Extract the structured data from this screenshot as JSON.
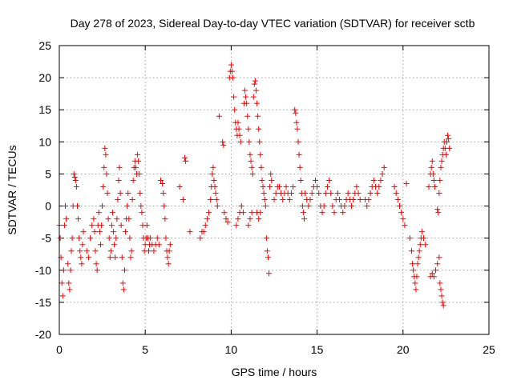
{
  "chart_data": {
    "type": "scatter",
    "title": "Day 278 of 2023, Sidereal Day-to-day VTEC variation (SDTVAR) for receiver sctb",
    "xlabel": "GPS time / hours",
    "ylabel": "SDTVAR / TECUs",
    "xlim": [
      0,
      25
    ],
    "ylim": [
      -20,
      25
    ],
    "xticks": [
      0,
      5,
      10,
      15,
      20,
      25
    ],
    "yticks": [
      -20,
      -15,
      -10,
      -5,
      0,
      5,
      10,
      15,
      20,
      25
    ],
    "xtick_labels": [
      "0",
      "5",
      "10",
      "15",
      "20",
      "25"
    ],
    "ytick_labels": [
      "-20",
      "-15",
      "-10",
      "-5",
      "0",
      "5",
      "10",
      "15",
      "20",
      "25"
    ],
    "grid": true,
    "marker": "+",
    "color": "#ff0000",
    "series": [
      {
        "name": "sctb",
        "points": [
          [
            0.0,
            -3
          ],
          [
            0.05,
            -5
          ],
          [
            0.1,
            -8
          ],
          [
            0.15,
            -12
          ],
          [
            0.2,
            -14
          ],
          [
            0.25,
            -10
          ],
          [
            0.3,
            -3
          ],
          [
            0.35,
            0
          ],
          [
            0.4,
            -2
          ],
          [
            0.5,
            -9
          ],
          [
            0.55,
            -12
          ],
          [
            0.6,
            -13
          ],
          [
            0.65,
            -10
          ],
          [
            0.7,
            -7
          ],
          [
            0.75,
            -5
          ],
          [
            0.8,
            0
          ],
          [
            0.85,
            5
          ],
          [
            0.9,
            4.5
          ],
          [
            0.95,
            4
          ],
          [
            1.0,
            3
          ],
          [
            1.05,
            0
          ],
          [
            1.1,
            -2
          ],
          [
            1.15,
            -5
          ],
          [
            1.2,
            -7
          ],
          [
            1.25,
            -8
          ],
          [
            1.3,
            -9
          ],
          [
            1.35,
            -6
          ],
          [
            1.4,
            -4
          ],
          [
            1.6,
            -7
          ],
          [
            1.7,
            -8
          ],
          [
            1.8,
            -5
          ],
          [
            1.9,
            -3
          ],
          [
            2.0,
            -2
          ],
          [
            2.05,
            -4
          ],
          [
            2.1,
            -7
          ],
          [
            2.15,
            -9
          ],
          [
            2.2,
            -10
          ],
          [
            2.25,
            -3
          ],
          [
            2.3,
            -1
          ],
          [
            2.35,
            -4
          ],
          [
            2.4,
            -6
          ],
          [
            2.45,
            -3
          ],
          [
            2.5,
            0
          ],
          [
            2.55,
            3
          ],
          [
            2.6,
            6
          ],
          [
            2.65,
            9
          ],
          [
            2.7,
            8
          ],
          [
            2.75,
            5
          ],
          [
            2.8,
            2
          ],
          [
            2.85,
            -2
          ],
          [
            2.9,
            -5
          ],
          [
            2.95,
            -8
          ],
          [
            3.0,
            -7
          ],
          [
            3.05,
            -3
          ],
          [
            3.1,
            -1
          ],
          [
            3.15,
            -4
          ],
          [
            3.2,
            -6
          ],
          [
            3.25,
            -8
          ],
          [
            3.3,
            -5
          ],
          [
            3.35,
            -2
          ],
          [
            3.4,
            1
          ],
          [
            3.45,
            4
          ],
          [
            3.5,
            6
          ],
          [
            3.55,
            2
          ],
          [
            3.6,
            -3
          ],
          [
            3.65,
            -8
          ],
          [
            3.7,
            -12
          ],
          [
            3.75,
            -13
          ],
          [
            3.8,
            -10
          ],
          [
            3.85,
            -4
          ],
          [
            3.9,
            -2
          ],
          [
            3.95,
            0
          ],
          [
            4.0,
            2
          ],
          [
            4.05,
            -2
          ],
          [
            4.1,
            -5
          ],
          [
            4.15,
            -8
          ],
          [
            4.2,
            -7
          ],
          [
            4.25,
            1
          ],
          [
            4.3,
            4
          ],
          [
            4.35,
            6
          ],
          [
            4.4,
            7
          ],
          [
            4.45,
            6
          ],
          [
            4.5,
            5
          ],
          [
            4.55,
            8
          ],
          [
            4.6,
            7
          ],
          [
            4.65,
            5
          ],
          [
            4.7,
            2
          ],
          [
            4.75,
            0
          ],
          [
            4.8,
            -1
          ],
          [
            4.85,
            -3
          ],
          [
            4.9,
            -5
          ],
          [
            4.95,
            -7
          ],
          [
            5.0,
            -6
          ],
          [
            5.05,
            -5
          ],
          [
            5.1,
            -3
          ],
          [
            5.15,
            -5
          ],
          [
            5.2,
            -7
          ],
          [
            5.25,
            -6
          ],
          [
            5.3,
            -5
          ],
          [
            5.4,
            -6
          ],
          [
            5.5,
            -7
          ],
          [
            5.6,
            -6
          ],
          [
            5.7,
            -5
          ],
          [
            5.8,
            -6
          ],
          [
            5.9,
            4
          ],
          [
            6.0,
            3.5
          ],
          [
            6.05,
            2
          ],
          [
            6.1,
            0
          ],
          [
            6.15,
            -2
          ],
          [
            6.2,
            -5
          ],
          [
            6.25,
            -7
          ],
          [
            6.3,
            -8
          ],
          [
            6.35,
            -9
          ],
          [
            6.4,
            -7
          ],
          [
            6.45,
            -6
          ],
          [
            7.0,
            3
          ],
          [
            7.2,
            1
          ],
          [
            7.3,
            7.5
          ],
          [
            7.35,
            7
          ],
          [
            7.6,
            -4
          ],
          [
            8.2,
            -5
          ],
          [
            8.3,
            -4
          ],
          [
            8.4,
            -4
          ],
          [
            8.5,
            -3
          ],
          [
            8.6,
            -2
          ],
          [
            8.7,
            -1
          ],
          [
            8.8,
            1
          ],
          [
            8.85,
            3
          ],
          [
            8.9,
            5
          ],
          [
            8.95,
            6
          ],
          [
            9.0,
            4
          ],
          [
            9.05,
            3
          ],
          [
            9.1,
            2
          ],
          [
            9.15,
            1
          ],
          [
            9.2,
            0
          ],
          [
            9.3,
            14
          ],
          [
            9.5,
            10
          ],
          [
            9.55,
            9.5
          ],
          [
            9.6,
            -1
          ],
          [
            9.7,
            -2
          ],
          [
            9.8,
            -2.5
          ],
          [
            9.9,
            20
          ],
          [
            9.95,
            21
          ],
          [
            10.0,
            22
          ],
          [
            10.05,
            21
          ],
          [
            10.1,
            20
          ],
          [
            10.15,
            17
          ],
          [
            10.2,
            15
          ],
          [
            10.25,
            13
          ],
          [
            10.3,
            12
          ],
          [
            10.35,
            11
          ],
          [
            10.4,
            13
          ],
          [
            10.45,
            12
          ],
          [
            10.5,
            11
          ],
          [
            10.55,
            10
          ],
          [
            10.3,
            -3
          ],
          [
            10.4,
            -2
          ],
          [
            10.5,
            -1
          ],
          [
            10.6,
            0
          ],
          [
            10.7,
            -1
          ],
          [
            10.75,
            16
          ],
          [
            10.8,
            18
          ],
          [
            10.85,
            17
          ],
          [
            10.9,
            16
          ],
          [
            10.95,
            14
          ],
          [
            11.0,
            12
          ],
          [
            11.05,
            10
          ],
          [
            11.1,
            8
          ],
          [
            11.15,
            7
          ],
          [
            11.2,
            6
          ],
          [
            11.25,
            5
          ],
          [
            11.0,
            -3
          ],
          [
            11.1,
            -2
          ],
          [
            11.2,
            -1
          ],
          [
            11.3,
            17
          ],
          [
            11.35,
            19
          ],
          [
            11.4,
            19.5
          ],
          [
            11.45,
            18
          ],
          [
            11.5,
            16
          ],
          [
            11.55,
            14
          ],
          [
            11.6,
            12
          ],
          [
            11.65,
            10
          ],
          [
            11.7,
            8
          ],
          [
            11.75,
            6
          ],
          [
            11.8,
            4
          ],
          [
            11.85,
            3
          ],
          [
            11.9,
            2
          ],
          [
            11.95,
            1
          ],
          [
            12.0,
            0
          ],
          [
            11.5,
            -1
          ],
          [
            11.6,
            -2
          ],
          [
            11.7,
            -1
          ],
          [
            12.05,
            -5
          ],
          [
            12.1,
            -7
          ],
          [
            12.15,
            -8
          ],
          [
            12.2,
            -10.5
          ],
          [
            12.25,
            3
          ],
          [
            12.3,
            5
          ],
          [
            12.35,
            4
          ],
          [
            12.5,
            1
          ],
          [
            12.6,
            2
          ],
          [
            12.7,
            3
          ],
          [
            12.8,
            3
          ],
          [
            12.9,
            2
          ],
          [
            13.0,
            1
          ],
          [
            13.1,
            2
          ],
          [
            13.2,
            3
          ],
          [
            13.3,
            2
          ],
          [
            13.4,
            1
          ],
          [
            13.5,
            2
          ],
          [
            13.6,
            3
          ],
          [
            13.7,
            15
          ],
          [
            13.75,
            14.5
          ],
          [
            13.8,
            13
          ],
          [
            13.85,
            12
          ],
          [
            13.9,
            10
          ],
          [
            13.95,
            8
          ],
          [
            14.0,
            6
          ],
          [
            14.05,
            4
          ],
          [
            14.1,
            2
          ],
          [
            14.15,
            0
          ],
          [
            14.2,
            -1
          ],
          [
            14.25,
            -2
          ],
          [
            14.3,
            2
          ],
          [
            14.4,
            1
          ],
          [
            14.5,
            0
          ],
          [
            14.6,
            1
          ],
          [
            14.7,
            2
          ],
          [
            14.8,
            3
          ],
          [
            14.9,
            4
          ],
          [
            15.0,
            3
          ],
          [
            15.1,
            2
          ],
          [
            15.2,
            0
          ],
          [
            15.3,
            -1
          ],
          [
            15.4,
            0
          ],
          [
            15.5,
            2
          ],
          [
            15.6,
            3
          ],
          [
            15.7,
            4
          ],
          [
            15.8,
            2
          ],
          [
            15.9,
            0
          ],
          [
            16.0,
            -1
          ],
          [
            16.1,
            1
          ],
          [
            16.2,
            2
          ],
          [
            16.3,
            1
          ],
          [
            16.4,
            0
          ],
          [
            16.5,
            -1
          ],
          [
            16.6,
            0
          ],
          [
            16.7,
            1
          ],
          [
            16.8,
            2
          ],
          [
            16.9,
            1
          ],
          [
            17.0,
            0
          ],
          [
            17.1,
            1
          ],
          [
            17.2,
            2
          ],
          [
            17.3,
            3
          ],
          [
            17.4,
            2
          ],
          [
            17.5,
            1
          ],
          [
            17.8,
            1
          ],
          [
            17.9,
            0
          ],
          [
            18.0,
            1
          ],
          [
            18.1,
            2
          ],
          [
            18.2,
            3
          ],
          [
            18.3,
            4
          ],
          [
            18.4,
            3
          ],
          [
            18.5,
            2
          ],
          [
            18.6,
            3
          ],
          [
            18.7,
            4
          ],
          [
            18.8,
            5
          ],
          [
            18.9,
            6
          ],
          [
            19.5,
            3
          ],
          [
            19.6,
            2
          ],
          [
            19.7,
            1
          ],
          [
            19.8,
            0
          ],
          [
            19.9,
            -1
          ],
          [
            20.0,
            -2
          ],
          [
            20.1,
            -3
          ],
          [
            20.2,
            3.5
          ],
          [
            20.4,
            -5
          ],
          [
            20.5,
            -7
          ],
          [
            20.55,
            -9
          ],
          [
            20.6,
            -10
          ],
          [
            20.65,
            -11
          ],
          [
            20.7,
            -12
          ],
          [
            20.75,
            -13
          ],
          [
            20.8,
            -11
          ],
          [
            20.85,
            -9
          ],
          [
            20.9,
            -8
          ],
          [
            20.95,
            -7
          ],
          [
            21.0,
            -6
          ],
          [
            21.05,
            -5
          ],
          [
            21.1,
            -4
          ],
          [
            21.2,
            -5
          ],
          [
            21.3,
            -6
          ],
          [
            21.5,
            3
          ],
          [
            21.6,
            5
          ],
          [
            21.65,
            6
          ],
          [
            21.7,
            7
          ],
          [
            21.75,
            5
          ],
          [
            21.8,
            4
          ],
          [
            21.85,
            3
          ],
          [
            21.6,
            -11
          ],
          [
            21.7,
            -10.5
          ],
          [
            21.8,
            -11
          ],
          [
            21.9,
            -10
          ],
          [
            22.0,
            -9
          ],
          [
            22.1,
            -8
          ],
          [
            22.15,
            -12
          ],
          [
            22.2,
            -13
          ],
          [
            22.25,
            -14
          ],
          [
            22.3,
            -15
          ],
          [
            22.35,
            -15.5
          ],
          [
            22.0,
            -0.5
          ],
          [
            22.05,
            -1
          ],
          [
            22.1,
            2
          ],
          [
            22.15,
            4
          ],
          [
            22.2,
            6
          ],
          [
            22.25,
            7
          ],
          [
            22.3,
            8
          ],
          [
            22.35,
            9
          ],
          [
            22.4,
            10
          ],
          [
            22.45,
            9
          ],
          [
            22.5,
            8
          ],
          [
            22.55,
            10
          ],
          [
            22.6,
            11
          ],
          [
            22.65,
            10.5
          ],
          [
            22.7,
            9
          ]
        ]
      }
    ]
  }
}
